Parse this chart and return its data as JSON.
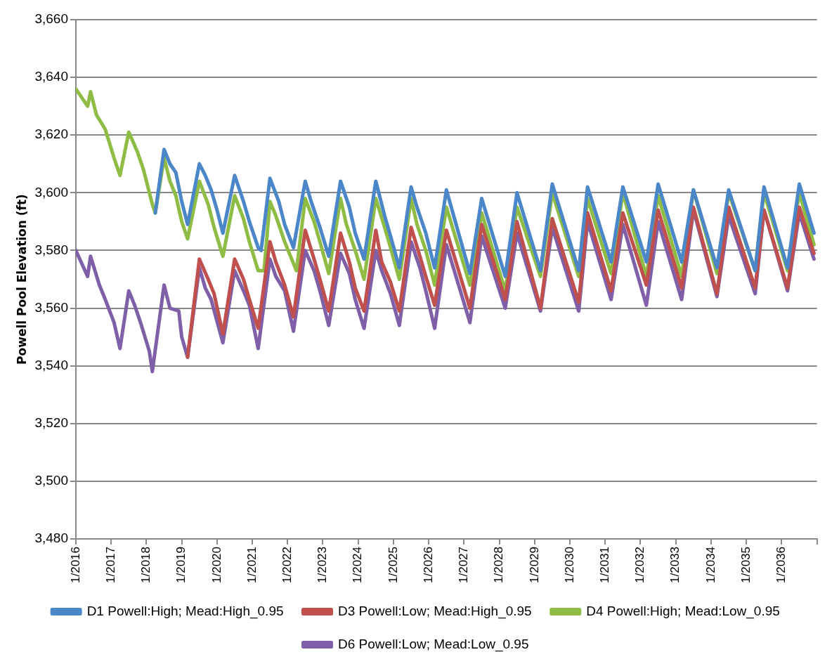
{
  "chart_data": {
    "type": "line",
    "ylabel": "Powell Pool Elevation (ft)",
    "grid": "y",
    "legend": "bottom",
    "marker": "none",
    "line_style": "solid",
    "xlim": [
      "2016-01",
      "2037-01"
    ],
    "xticks": [
      {
        "value": "2016-01",
        "label": "1/2016"
      },
      {
        "value": "2017-01",
        "label": "1/2017"
      },
      {
        "value": "2018-01",
        "label": "1/2018"
      },
      {
        "value": "2019-01",
        "label": "1/2019"
      },
      {
        "value": "2020-01",
        "label": "1/2020"
      },
      {
        "value": "2021-01",
        "label": "1/2021"
      },
      {
        "value": "2022-01",
        "label": "1/2022"
      },
      {
        "value": "2023-01",
        "label": "1/2023"
      },
      {
        "value": "2024-01",
        "label": "1/2024"
      },
      {
        "value": "2025-01",
        "label": "1/2025"
      },
      {
        "value": "2026-01",
        "label": "1/2026"
      },
      {
        "value": "2027-01",
        "label": "1/2027"
      },
      {
        "value": "2028-01",
        "label": "1/2028"
      },
      {
        "value": "2029-01",
        "label": "1/2029"
      },
      {
        "value": "2030-01",
        "label": "1/2030"
      },
      {
        "value": "2031-01",
        "label": "1/2031"
      },
      {
        "value": "2032-01",
        "label": "1/2032"
      },
      {
        "value": "2033-01",
        "label": "1/2033"
      },
      {
        "value": "2034-01",
        "label": "1/2034"
      },
      {
        "value": "2035-01",
        "label": "1/2035"
      },
      {
        "value": "2036-01",
        "label": "1/2036"
      },
      {
        "value": "2037-01",
        "label": null
      }
    ],
    "ylim": [
      3480,
      3660
    ],
    "yticks": [
      {
        "value": 3480,
        "label": "3,480"
      },
      {
        "value": 3500,
        "label": "3,500"
      },
      {
        "value": 3520,
        "label": "3,520"
      },
      {
        "value": 3540,
        "label": "3,540"
      },
      {
        "value": 3560,
        "label": "3,560"
      },
      {
        "value": 3580,
        "label": "3,580"
      },
      {
        "value": 3600,
        "label": "3,600"
      },
      {
        "value": 3620,
        "label": "3,620"
      },
      {
        "value": 3640,
        "label": "3,640"
      },
      {
        "value": 3660,
        "label": "3,660"
      }
    ],
    "series": [
      {
        "name": "D1 Powell:High; Mead:High_0.95",
        "color": "#4a86c8",
        "x": [
          "2018-04",
          "2018-07",
          "2018-09",
          "2018-11",
          "2019-01",
          "2019-03",
          "2019-07",
          "2019-09",
          "2019-11",
          "2020-01",
          "2020-03",
          "2020-07",
          "2020-10",
          "2020-12",
          "2021-03",
          "2021-04",
          "2021-07",
          "2021-10",
          "2021-12",
          "2022-03",
          "2022-07",
          "2022-09",
          "2022-12",
          "2023-03",
          "2023-07",
          "2023-10",
          "2023-12",
          "2024-03",
          "2024-07",
          "2024-10",
          "2024-12",
          "2025-03",
          "2025-07",
          "2025-09",
          "2025-12",
          "2026-03",
          "2026-07",
          "2027-03",
          "2027-07",
          "2028-03",
          "2028-07",
          "2029-03",
          "2029-07",
          "2030-04",
          "2030-07",
          "2031-03",
          "2031-07",
          "2032-03",
          "2032-07",
          "2033-03",
          "2033-07",
          "2034-03",
          "2034-07",
          "2035-04",
          "2035-07",
          "2036-03",
          "2036-07",
          "2036-12"
        ],
        "values": [
          3593,
          3615,
          3610,
          3607,
          3597,
          3589,
          3610,
          3606,
          3601,
          3594,
          3586,
          3606,
          3597,
          3590,
          3581,
          3580,
          3605,
          3597,
          3589,
          3581,
          3604,
          3597,
          3588,
          3578,
          3604,
          3595,
          3586,
          3577,
          3604,
          3592,
          3585,
          3574,
          3602,
          3595,
          3586,
          3574,
          3601,
          3572,
          3598,
          3571,
          3600,
          3573,
          3603,
          3573,
          3602,
          3576,
          3602,
          3576,
          3603,
          3576,
          3601,
          3574,
          3601,
          3573,
          3602,
          3574,
          3603,
          3586
        ]
      },
      {
        "name": "D3 Powell:Low; Mead:High_0.95",
        "color": "#c0504d",
        "x": [
          "2019-03",
          "2019-07",
          "2019-10",
          "2019-12",
          "2020-03",
          "2020-07",
          "2020-10",
          "2020-12",
          "2021-03",
          "2021-07",
          "2021-09",
          "2021-12",
          "2022-03",
          "2022-07",
          "2022-10",
          "2022-12",
          "2023-03",
          "2023-07",
          "2023-10",
          "2023-12",
          "2024-03",
          "2024-07",
          "2024-09",
          "2024-12",
          "2025-03",
          "2025-07",
          "2025-10",
          "2025-12",
          "2026-03",
          "2026-07",
          "2027-03",
          "2027-07",
          "2028-03",
          "2028-07",
          "2029-03",
          "2029-07",
          "2030-04",
          "2030-07",
          "2031-03",
          "2031-07",
          "2032-03",
          "2032-07",
          "2033-03",
          "2033-07",
          "2034-03",
          "2034-07",
          "2035-04",
          "2035-07",
          "2036-03",
          "2036-07",
          "2036-12"
        ],
        "values": [
          3543,
          3577,
          3570,
          3565,
          3551,
          3577,
          3570,
          3563,
          3553,
          3583,
          3576,
          3568,
          3557,
          3587,
          3577,
          3570,
          3559,
          3586,
          3576,
          3567,
          3559,
          3587,
          3576,
          3569,
          3559,
          3588,
          3578,
          3571,
          3561,
          3587,
          3560,
          3589,
          3563,
          3590,
          3560,
          3591,
          3562,
          3593,
          3566,
          3593,
          3568,
          3594,
          3567,
          3595,
          3565,
          3595,
          3567,
          3594,
          3567,
          3595,
          3579
        ]
      },
      {
        "name": "D4 Powell:High; Mead:Low_0.95",
        "color": "#8fbc44",
        "x": [
          "2016-01",
          "2016-05",
          "2016-06",
          "2016-08",
          "2016-11",
          "2017-02",
          "2017-04",
          "2017-07",
          "2017-10",
          "2017-12",
          "2018-03",
          "2018-04",
          "2018-07",
          "2018-09",
          "2018-11",
          "2019-01",
          "2019-03",
          "2019-07",
          "2019-10",
          "2019-12",
          "2020-03",
          "2020-07",
          "2020-10",
          "2020-12",
          "2021-03",
          "2021-05",
          "2021-07",
          "2021-09",
          "2021-12",
          "2022-04",
          "2022-07",
          "2022-10",
          "2022-12",
          "2023-03",
          "2023-07",
          "2023-09",
          "2023-12",
          "2024-03",
          "2024-07",
          "2024-10",
          "2024-12",
          "2025-03",
          "2025-07",
          "2025-09",
          "2025-12",
          "2026-03",
          "2026-07",
          "2027-03",
          "2027-07",
          "2028-03",
          "2028-07",
          "2029-03",
          "2029-07",
          "2030-04",
          "2030-07",
          "2031-03",
          "2031-07",
          "2032-03",
          "2032-07",
          "2033-03",
          "2033-07",
          "2034-03",
          "2034-07",
          "2035-04",
          "2035-07",
          "2036-03",
          "2036-07",
          "2036-12"
        ],
        "values": [
          3636,
          3630,
          3635,
          3627,
          3622,
          3612,
          3606,
          3621,
          3614,
          3608,
          3596,
          3593,
          3612,
          3604,
          3599,
          3590,
          3584,
          3604,
          3596,
          3588,
          3578,
          3599,
          3591,
          3583,
          3573,
          3573,
          3597,
          3592,
          3583,
          3573,
          3598,
          3590,
          3583,
          3572,
          3598,
          3589,
          3580,
          3570,
          3598,
          3588,
          3581,
          3570,
          3598,
          3589,
          3580,
          3568,
          3595,
          3568,
          3593,
          3566,
          3595,
          3571,
          3600,
          3571,
          3598,
          3572,
          3600,
          3571,
          3599,
          3571,
          3601,
          3572,
          3600,
          3573,
          3600,
          3573,
          3600,
          3582
        ]
      },
      {
        "name": "D6 Powell:Low; Mead:Low_0.95",
        "color": "#7f5fa8",
        "x": [
          "2016-01",
          "2016-05",
          "2016-06",
          "2016-09",
          "2016-11",
          "2017-02",
          "2017-04",
          "2017-07",
          "2017-09",
          "2017-11",
          "2018-02",
          "2018-03",
          "2018-07",
          "2018-09",
          "2018-12",
          "2019-01",
          "2019-03",
          "2019-07",
          "2019-09",
          "2019-11",
          "2020-03",
          "2020-07",
          "2020-10",
          "2020-12",
          "2021-03",
          "2021-07",
          "2021-09",
          "2021-12",
          "2022-03",
          "2022-07",
          "2022-10",
          "2022-12",
          "2023-03",
          "2023-07",
          "2023-10",
          "2023-12",
          "2024-03",
          "2024-07",
          "2024-09",
          "2024-12",
          "2025-03",
          "2025-07",
          "2025-10",
          "2025-12",
          "2026-03",
          "2026-07",
          "2027-03",
          "2027-07",
          "2028-03",
          "2028-07",
          "2029-03",
          "2029-07",
          "2030-04",
          "2030-07",
          "2031-03",
          "2031-07",
          "2032-03",
          "2032-07",
          "2033-03",
          "2033-07",
          "2034-03",
          "2034-07",
          "2035-04",
          "2035-07",
          "2036-03",
          "2036-07",
          "2036-12"
        ],
        "values": [
          3580,
          3571,
          3578,
          3568,
          3563,
          3555,
          3546,
          3566,
          3561,
          3555,
          3545,
          3538,
          3568,
          3560,
          3559,
          3550,
          3543,
          3574,
          3567,
          3563,
          3548,
          3573,
          3566,
          3561,
          3546,
          3577,
          3571,
          3566,
          3552,
          3580,
          3573,
          3566,
          3554,
          3579,
          3572,
          3563,
          3553,
          3580,
          3573,
          3565,
          3554,
          3583,
          3574,
          3566,
          3553,
          3582,
          3555,
          3585,
          3560,
          3586,
          3559,
          3588,
          3559,
          3590,
          3563,
          3589,
          3561,
          3590,
          3563,
          3594,
          3564,
          3592,
          3565,
          3594,
          3566,
          3593,
          3577
        ]
      }
    ]
  }
}
